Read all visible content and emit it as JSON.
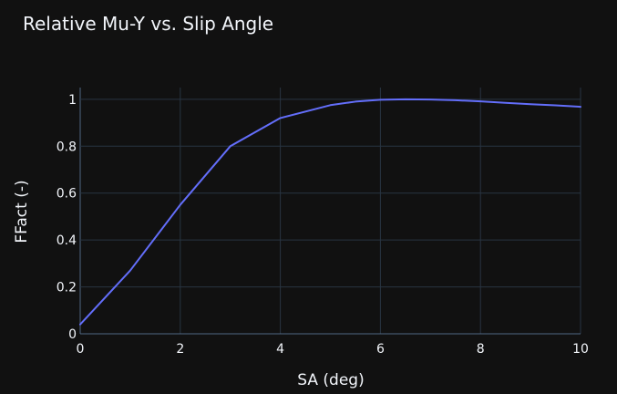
{
  "chart_data": {
    "type": "line",
    "title": "Relative Mu-Y vs. Slip Angle",
    "xlabel": "SA (deg)",
    "ylabel": "FFact (-)",
    "xlim": [
      0,
      10
    ],
    "ylim": [
      0,
      1.05
    ],
    "x_ticks": [
      0,
      2,
      4,
      6,
      8,
      10
    ],
    "x_tick_labels": [
      "0",
      "2",
      "4",
      "6",
      "8",
      "10"
    ],
    "y_ticks": [
      0,
      0.2,
      0.4,
      0.6,
      0.8,
      1
    ],
    "y_tick_labels": [
      "0",
      "0.2",
      "0.4",
      "0.6",
      "0.8",
      "1"
    ],
    "grid": true,
    "series": [
      {
        "color": "#636efa",
        "x": [
          0,
          1,
          2,
          3,
          4,
          5,
          5.5,
          6,
          6.5,
          7,
          7.5,
          8,
          8.5,
          9,
          9.5,
          10
        ],
        "y": [
          0.04,
          0.27,
          0.55,
          0.8,
          0.92,
          0.975,
          0.99,
          0.998,
          1.0,
          0.999,
          0.996,
          0.991,
          0.985,
          0.979,
          0.974,
          0.968
        ]
      }
    ]
  }
}
